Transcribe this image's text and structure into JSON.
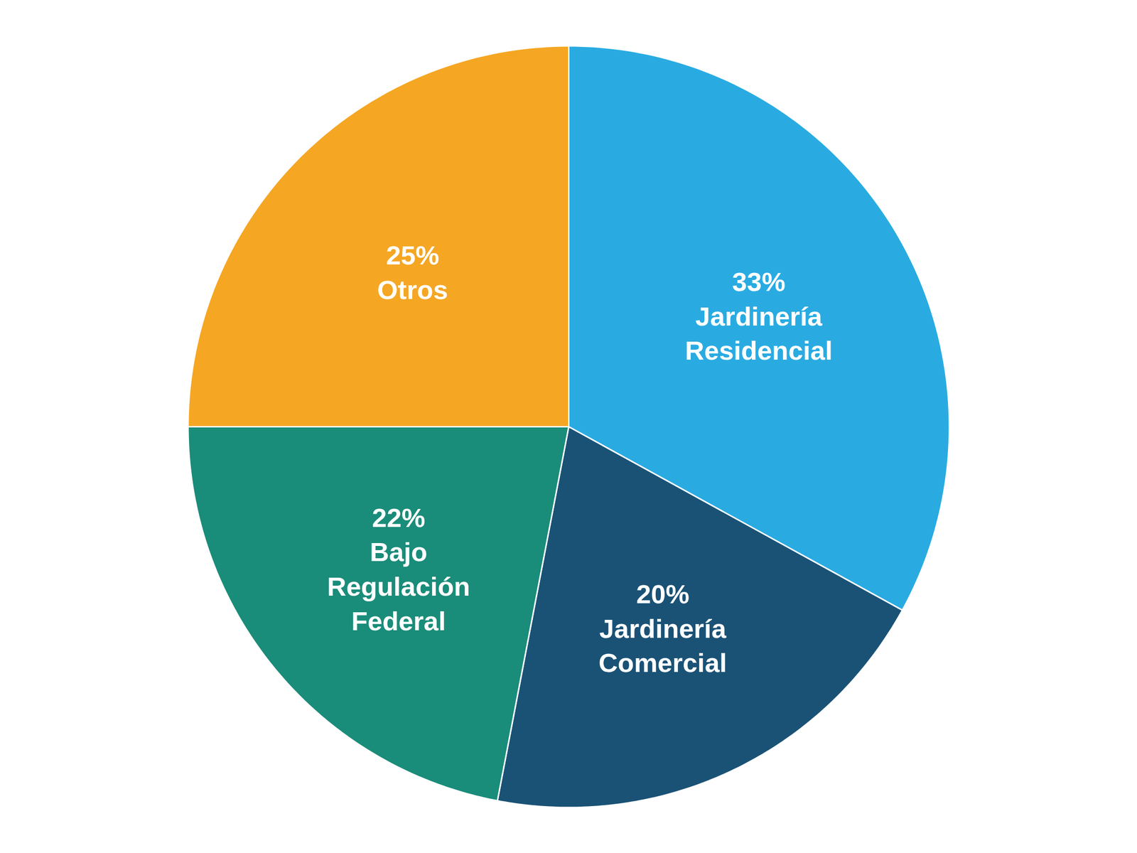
{
  "chart_data": {
    "type": "pie",
    "categories": [
      "Jardinería\nResidencial",
      "Jardinería\nComercial",
      "Bajo\nRegulación\nFederal",
      "Otros"
    ],
    "values": [
      33,
      20,
      22,
      25
    ],
    "value_labels": [
      "33%",
      "20%",
      "22%",
      "25%"
    ],
    "colors": [
      "#29ABE2",
      "#1A5276",
      "#1A8C7A",
      "#F5A623"
    ],
    "data_labels": true,
    "tick_labels": false
  }
}
